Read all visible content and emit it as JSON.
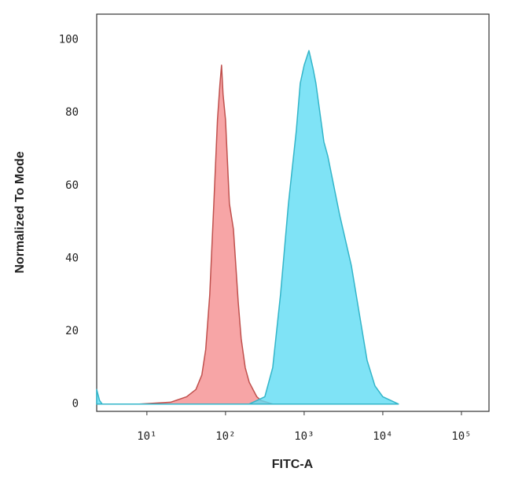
{
  "chart_data": {
    "type": "area",
    "x_label": "FITC-A",
    "y_label": "Normalized To Mode",
    "xscale": "log",
    "xlim": [
      2.3,
      224000
    ],
    "ylim": [
      -2,
      107
    ],
    "xticks": [
      {
        "value": 10,
        "label": "10¹"
      },
      {
        "value": 100,
        "label": "10²"
      },
      {
        "value": 1000,
        "label": "10³"
      },
      {
        "value": 10000,
        "label": "10⁴"
      },
      {
        "value": 100000,
        "label": "10⁵"
      }
    ],
    "yticks": [
      0,
      20,
      40,
      60,
      80,
      100
    ],
    "series": [
      {
        "color": "#f58f90",
        "edge_color": "#c0504d",
        "x": [
          8,
          20,
          32,
          42,
          50,
          56,
          63,
          71,
          79,
          85,
          89,
          93,
          100,
          112,
          126,
          145,
          158,
          178,
          200,
          250,
          282,
          398
        ],
        "values": [
          0,
          0.5,
          2,
          4,
          8,
          15,
          30,
          55,
          78,
          88,
          93,
          85,
          78,
          55,
          48,
          28,
          18,
          10,
          6,
          2,
          1,
          0
        ]
      },
      {
        "color": "#5fdcf4",
        "edge_color": "#33b5c9",
        "x": [
          2.3,
          2.5,
          2.7,
          200,
          316,
          398,
          500,
          631,
          794,
          891,
          1000,
          1150,
          1300,
          1410,
          1780,
          2000,
          2820,
          3980,
          5010,
          6310,
          7940,
          10000,
          12600,
          15800
        ],
        "values": [
          4,
          1,
          0,
          0,
          2,
          10,
          30,
          55,
          75,
          88,
          93,
          97,
          92,
          88,
          72,
          68,
          52,
          38,
          25,
          12,
          5,
          2,
          1,
          0
        ]
      }
    ]
  }
}
